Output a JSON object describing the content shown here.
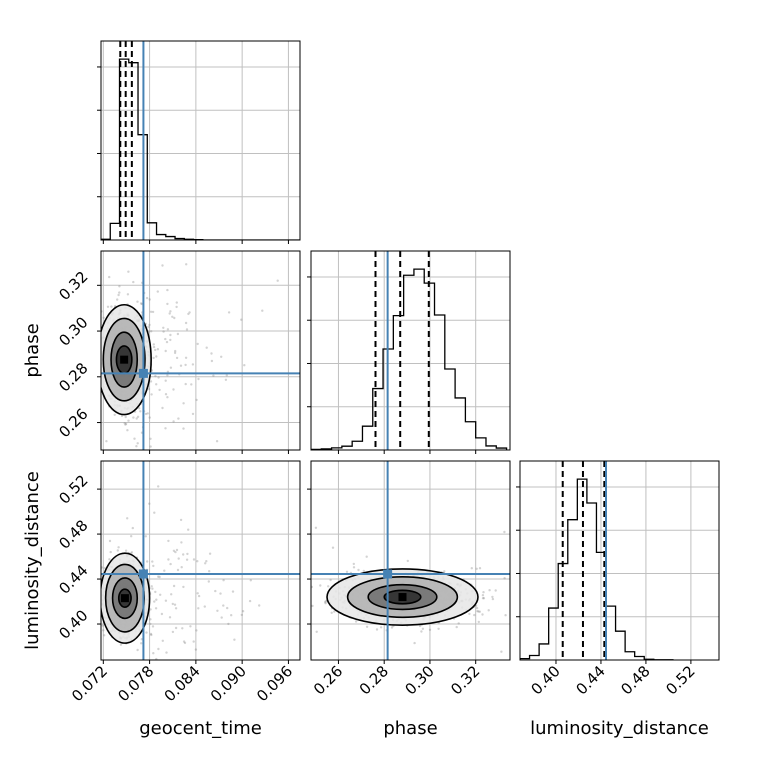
{
  "chart_data": {
    "type": "corner",
    "parameters": [
      "geocent_time",
      "phase",
      "luminosity_distance"
    ],
    "injection": {
      "geocent_time": 0.0772,
      "phase": 0.2815,
      "luminosity_distance": 0.4445
    },
    "colors": {
      "injection": "#4682b4",
      "hist": "#000000",
      "contour": "#000000",
      "scatter": "#808080",
      "grid": "#c0c0c0"
    },
    "axis_labels": {
      "x": [
        "geocent_time",
        "phase",
        "luminosity_distance"
      ],
      "y": [
        "",
        "phase",
        "luminosity_distance"
      ]
    },
    "ranges": {
      "geocent_time": [
        0.0717,
        0.0975
      ],
      "phase": [
        0.248,
        0.335
      ],
      "luminosity_distance": [
        0.368,
        0.545
      ]
    },
    "ticks": {
      "geocent_time": [
        "0.072",
        "0.078",
        "0.084",
        "0.090",
        "0.096"
      ],
      "phase": [
        "0.26",
        "0.28",
        "0.30",
        "0.32"
      ],
      "luminosity_distance": [
        "0.40",
        "0.44",
        "0.48",
        "0.52"
      ]
    },
    "quantiles": {
      "geocent_time": [
        0.0742,
        0.0749,
        0.0757
      ],
      "phase": [
        0.2762,
        0.287,
        0.2995
      ],
      "luminosity_distance": [
        0.406,
        0.424,
        0.443
      ]
    },
    "histograms": {
      "geocent_time": {
        "edges": [
          0.0717,
          0.0729,
          0.0741,
          0.0753,
          0.0765,
          0.0777,
          0.0789,
          0.0801,
          0.0813,
          0.0825,
          0.0837,
          0.0849,
          0.0975
        ],
        "counts": [
          4,
          92,
          1000,
          980,
          582,
          95,
          30,
          19,
          8,
          4,
          2,
          0
        ]
      },
      "phase": {
        "edges": [
          0.248,
          0.2525,
          0.257,
          0.2615,
          0.266,
          0.2705,
          0.275,
          0.2795,
          0.284,
          0.2885,
          0.293,
          0.2975,
          0.302,
          0.3065,
          0.311,
          0.3155,
          0.32,
          0.3245,
          0.329,
          0.3335
        ],
        "counts": [
          3,
          5,
          10,
          18,
          41,
          112,
          289,
          475,
          632,
          822,
          851,
          785,
          635,
          381,
          245,
          133,
          57,
          19,
          9
        ]
      },
      "luminosity_distance": {
        "edges": [
          0.368,
          0.3765,
          0.385,
          0.3935,
          0.402,
          0.4105,
          0.419,
          0.4275,
          0.436,
          0.4445,
          0.453,
          0.4615,
          0.47,
          0.4785,
          0.487,
          0.4955,
          0.504
        ],
        "counts": [
          7,
          23,
          82,
          265,
          492,
          716,
          923,
          801,
          549,
          275,
          147,
          42,
          18,
          4,
          1,
          1
        ]
      }
    },
    "contours_2d": {
      "phase_vs_geocent_time": {
        "center": [
          0.0747,
          0.2875
        ],
        "levels": [
          {
            "rx": 0.001,
            "ry": 0.006
          },
          {
            "rx": 0.0017,
            "ry": 0.012
          },
          {
            "rx": 0.0027,
            "ry": 0.018
          },
          {
            "rx": 0.0035,
            "ry": 0.024
          }
        ]
      },
      "luminosity_distance_vs_geocent_time": {
        "center": [
          0.0748,
          0.423
        ],
        "levels": [
          {
            "rx": 0.0008,
            "ry": 0.008
          },
          {
            "rx": 0.0016,
            "ry": 0.018
          },
          {
            "rx": 0.0025,
            "ry": 0.03
          },
          {
            "rx": 0.0032,
            "ry": 0.04
          }
        ]
      },
      "luminosity_distance_vs_phase": {
        "center": [
          0.288,
          0.424
        ],
        "levels": [
          {
            "rx": 0.008,
            "ry": 0.006
          },
          {
            "rx": 0.015,
            "ry": 0.011
          },
          {
            "rx": 0.024,
            "ry": 0.018
          },
          {
            "rx": 0.033,
            "ry": 0.025
          }
        ]
      }
    }
  }
}
